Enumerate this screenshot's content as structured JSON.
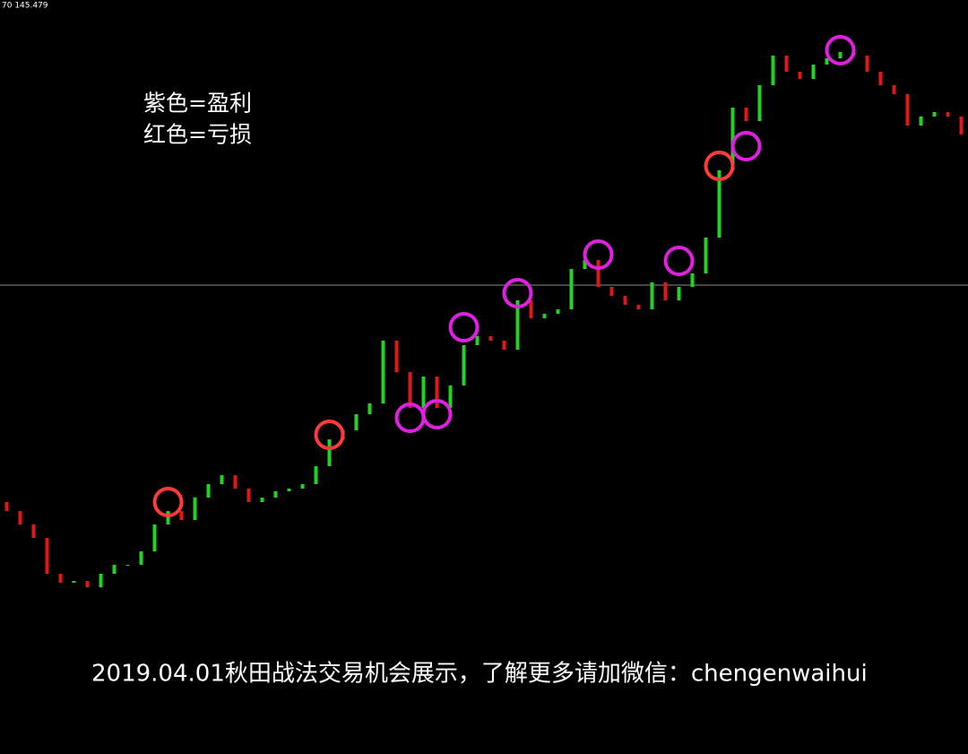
{
  "chart_data": {
    "type": "candlestick",
    "corner_text": "70 145.479",
    "notes": [
      "紫色=盈利",
      "红色=亏损"
    ],
    "caption": "2019.04.01秋田战法交易机会展示，了解更多请加微信：chengenwaihui",
    "ylim": [
      0,
      841
    ],
    "up_color": "#22d322",
    "down_color": "#e01818",
    "open": [
      281,
      271,
      256,
      241,
      201,
      191,
      193,
      186,
      201,
      211,
      211,
      226,
      256,
      271,
      261,
      286,
      301,
      311,
      296,
      281,
      286,
      293,
      296,
      301,
      321,
      351,
      361,
      379,
      391,
      461,
      426,
      386,
      421,
      386,
      411,
      456,
      466,
      461,
      451,
      506,
      486,
      491,
      496,
      541,
      551,
      521,
      511,
      501,
      496,
      526,
      506,
      521,
      536,
      576,
      651,
      721,
      706,
      746,
      779,
      761,
      753,
      769,
      776,
      783,
      779,
      761,
      746,
      736,
      701,
      711,
      716,
      711
    ],
    "close": [
      271,
      256,
      241,
      201,
      191,
      193,
      186,
      201,
      211,
      211,
      226,
      256,
      271,
      261,
      286,
      301,
      311,
      296,
      281,
      286,
      293,
      296,
      301,
      321,
      351,
      361,
      379,
      391,
      461,
      426,
      386,
      421,
      386,
      411,
      456,
      466,
      461,
      451,
      506,
      486,
      491,
      496,
      541,
      551,
      521,
      511,
      501,
      496,
      526,
      506,
      521,
      536,
      576,
      651,
      721,
      706,
      746,
      779,
      761,
      753,
      769,
      776,
      783,
      779,
      761,
      746,
      736,
      701,
      711,
      716,
      711,
      691
    ],
    "signals": {
      "x": [
        12,
        24,
        53,
        30,
        32,
        34,
        38,
        44,
        50,
        55,
        62
      ],
      "values": [
        281,
        356,
        656,
        375,
        379,
        476,
        514,
        557,
        550,
        678,
        785
      ],
      "colors": [
        "#ff3b3b",
        "#ff3b3b",
        "#ff3b3b",
        "#e020e0",
        "#e020e0",
        "#e020e0",
        "#e020e0",
        "#e020e0",
        "#e020e0",
        "#e020e0",
        "#e020e0"
      ]
    }
  }
}
